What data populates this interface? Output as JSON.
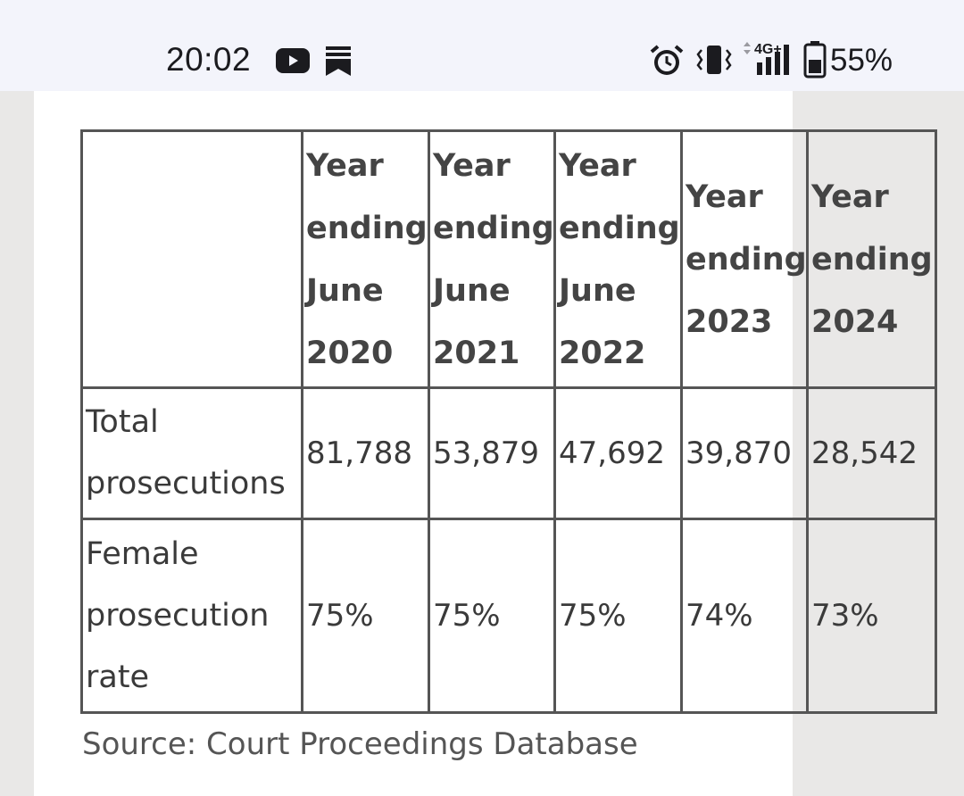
{
  "status_bar": {
    "time": "20:02",
    "battery": "55%",
    "network": "4G+",
    "icons": [
      "youtube-icon",
      "bookmark-icon",
      "alarm-icon",
      "vibrate-icon",
      "signal-icon",
      "battery-icon"
    ]
  },
  "table": {
    "columns": [
      "Year ending June 2020",
      "Year ending June 2021",
      "Year ending June 2022",
      "Year ending 2023",
      "Year ending 2024"
    ],
    "rows": [
      {
        "label": "Total prosecutions",
        "values": [
          "81,788",
          "53,879",
          "47,692",
          "39,870",
          "28,542"
        ]
      },
      {
        "label": "Female prosecution rate",
        "values": [
          "75%",
          "75%",
          "75%",
          "74%",
          "73%"
        ]
      }
    ]
  },
  "source": "Source: Court Proceedings Database",
  "colors": {
    "status_bar_bg": "#f3f4fb",
    "page_bg": "#e9e8e7",
    "panel_bg": "#ffffff",
    "table_border": "#555555",
    "text": "#3a3a3a"
  }
}
